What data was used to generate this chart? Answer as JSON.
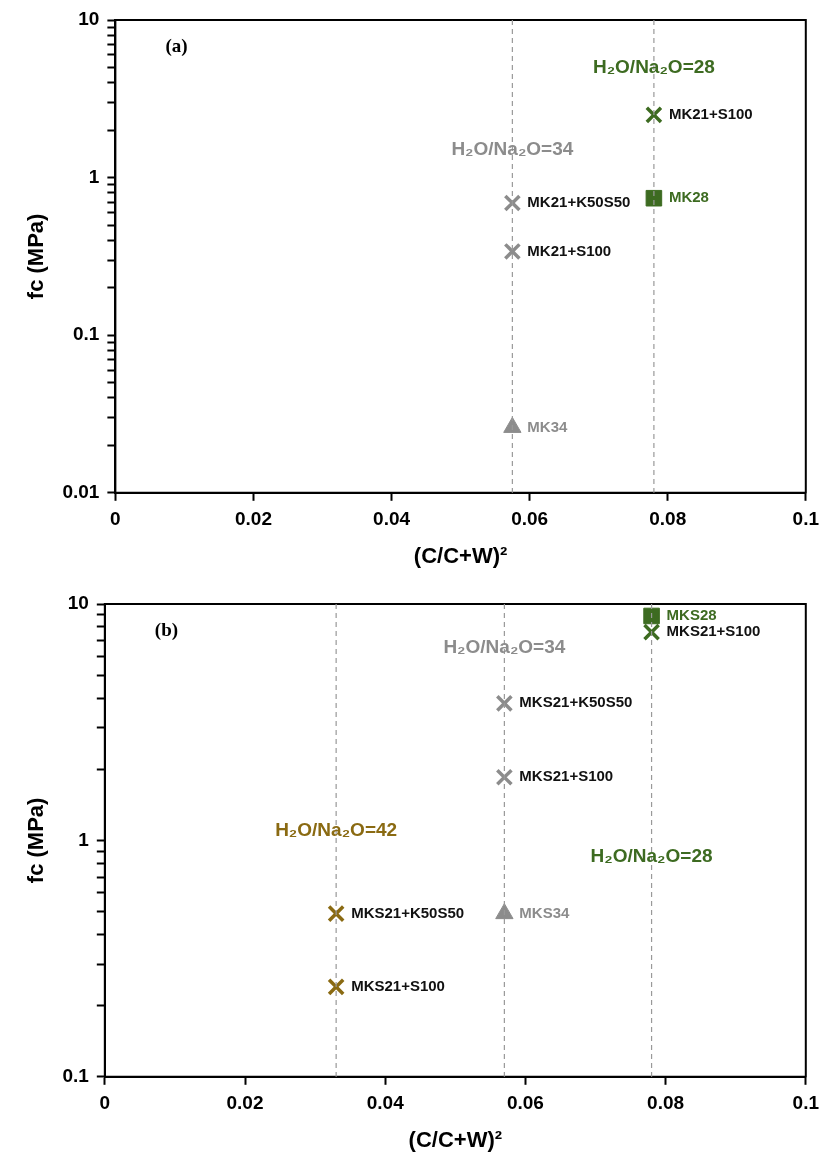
{
  "chart_data": [
    {
      "type": "scatter",
      "xlabel": "(C/C+W)²",
      "ylabel": "fc (MPa)",
      "log": "y",
      "grid": false,
      "legend": false,
      "annotations": [
        "(a)",
        {
          "text": "H₂O/Na₂O=34",
          "x": 0.0575,
          "y": 1.5
        },
        {
          "text": "H₂O/Na₂O=28",
          "x": 0.078,
          "y": 5
        }
      ],
      "xlim": [
        0,
        0.1
      ],
      "xticks": [
        0,
        0.02,
        0.04,
        0.06,
        0.08,
        0.1
      ],
      "ylim": [
        0.01,
        10
      ],
      "yticks": [
        0.01,
        {
          "value": 0.02,
          "label": null
        },
        {
          "value": 0.03,
          "label": null
        },
        {
          "value": 0.04,
          "label": null
        },
        {
          "value": 0.05,
          "label": null
        },
        {
          "value": 0.06,
          "label": null
        },
        {
          "value": 0.07,
          "label": null
        },
        {
          "value": 0.08,
          "label": null
        },
        {
          "value": 0.09,
          "label": null
        },
        0.1,
        {
          "value": 0.2,
          "label": null
        },
        {
          "value": 0.3,
          "label": null
        },
        {
          "value": 0.4,
          "label": null
        },
        {
          "value": 0.5,
          "label": null
        },
        {
          "value": 0.6,
          "label": null
        },
        {
          "value": 0.7,
          "label": null
        },
        {
          "value": 0.8,
          "label": null
        },
        {
          "value": 0.9,
          "label": null
        },
        1,
        {
          "value": 2,
          "label": null
        },
        {
          "value": 3,
          "label": null
        },
        {
          "value": 4,
          "label": null
        },
        {
          "value": 5,
          "label": null
        },
        {
          "value": 6,
          "label": null
        },
        {
          "value": 7,
          "label": null
        },
        {
          "value": 8,
          "label": null
        },
        {
          "value": 9,
          "label": null
        },
        10
      ],
      "ref_lines": [
        {
          "axis": "x",
          "value": 0.0575,
          "color": "#999999",
          "line_style": "dashed"
        },
        {
          "axis": "x",
          "value": 0.078,
          "color": "#999999",
          "line_style": "dashed"
        }
      ],
      "series": [
        {
          "name": "MK21+K50S50",
          "color": "#8c8c8c",
          "marker": "cross",
          "x": [
            0.0575
          ],
          "values": [
            0.69
          ]
        },
        {
          "name": "MK21+S100",
          "color": "#8c8c8c",
          "marker": "cross",
          "x": [
            0.0575
          ],
          "values": [
            0.34
          ]
        },
        {
          "name": "MK34",
          "color": "#8c8c8c",
          "marker": "triangle",
          "x": [
            0.0575
          ],
          "values": [
            0.026
          ]
        },
        {
          "name": "MK21+S100",
          "color": "#3d6b21",
          "marker": "cross",
          "x": [
            0.078
          ],
          "values": [
            2.5
          ]
        },
        {
          "name": "MK28",
          "color": "#3d6b21",
          "marker": "square",
          "x": [
            0.078
          ],
          "values": [
            0.74
          ]
        }
      ]
    },
    {
      "type": "scatter",
      "xlabel": "(C/C+W)²",
      "ylabel": "fc (MPa)",
      "log": "y",
      "grid": false,
      "legend": false,
      "annotations": [
        "(b)",
        {
          "text": "H₂O/Na₂O=42",
          "x": 0.033,
          "y": 1.1
        },
        {
          "text": "H₂O/Na₂O=34",
          "x": 0.057,
          "y": 6.5
        },
        {
          "text": "H₂O/Na₂O=28",
          "x": 0.078,
          "y": 0.85
        }
      ],
      "xlim": [
        0,
        0.1
      ],
      "xticks": [
        0,
        0.02,
        0.04,
        0.06,
        0.08,
        0.1
      ],
      "ylim": [
        0.1,
        10
      ],
      "yticks": [
        0.1,
        {
          "value": 0.2,
          "label": null
        },
        {
          "value": 0.3,
          "label": null
        },
        {
          "value": 0.4,
          "label": null
        },
        {
          "value": 0.5,
          "label": null
        },
        {
          "value": 0.6,
          "label": null
        },
        {
          "value": 0.7,
          "label": null
        },
        {
          "value": 0.8,
          "label": null
        },
        {
          "value": 0.9,
          "label": null
        },
        1,
        {
          "value": 2,
          "label": null
        },
        {
          "value": 3,
          "label": null
        },
        {
          "value": 4,
          "label": null
        },
        {
          "value": 5,
          "label": null
        },
        {
          "value": 6,
          "label": null
        },
        {
          "value": 7,
          "label": null
        },
        {
          "value": 8,
          "label": null
        },
        {
          "value": 9,
          "label": null
        },
        10
      ],
      "ref_lines": [
        {
          "axis": "x",
          "value": 0.033,
          "color": "#999999",
          "line_style": "dashed"
        },
        {
          "axis": "x",
          "value": 0.057,
          "color": "#999999",
          "line_style": "dashed"
        },
        {
          "axis": "x",
          "value": 0.078,
          "color": "#999999",
          "line_style": "dashed"
        }
      ],
      "series": [
        {
          "name": "MKS21+K50S50",
          "color": "#8a6a12",
          "marker": "cross",
          "x": [
            0.033
          ],
          "values": [
            0.49
          ]
        },
        {
          "name": "MKS21+S100",
          "color": "#8a6a12",
          "marker": "cross",
          "x": [
            0.033
          ],
          "values": [
            0.24
          ]
        },
        {
          "name": "MKS21+K50S50",
          "color": "#8c8c8c",
          "marker": "cross",
          "x": [
            0.057
          ],
          "values": [
            3.8
          ]
        },
        {
          "name": "MKS21+S100",
          "color": "#8c8c8c",
          "marker": "cross",
          "x": [
            0.057
          ],
          "values": [
            1.85
          ]
        },
        {
          "name": "MKS34",
          "color": "#8c8c8c",
          "marker": "triangle",
          "x": [
            0.057
          ],
          "values": [
            0.49
          ]
        },
        {
          "name": "MKS28",
          "color": "#3d6b21",
          "marker": "square",
          "x": [
            0.078
          ],
          "values": [
            8.9
          ]
        },
        {
          "name": "MKS21+S100",
          "color": "#3d6b21",
          "marker": "cross",
          "x": [
            0.078
          ],
          "values": [
            7.6
          ]
        }
      ]
    }
  ]
}
